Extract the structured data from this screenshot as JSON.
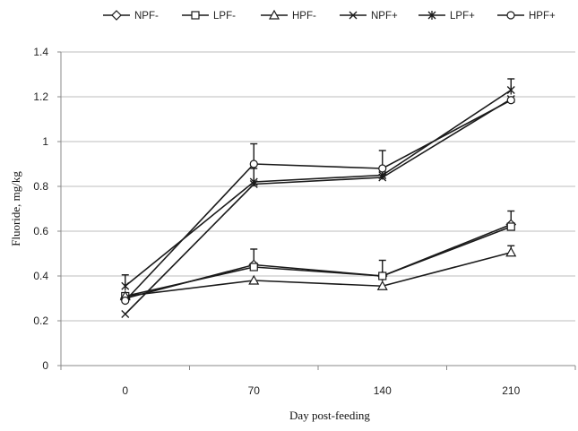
{
  "chart_data": {
    "type": "line",
    "title": "",
    "xlabel": "Day post-feeding",
    "ylabel": "Fluoride, mg/kg",
    "categories": [
      "0",
      "70",
      "140",
      "210"
    ],
    "ylim": [
      0,
      1.4
    ],
    "yticks": [
      "0",
      "0.2",
      "0.4",
      "0.6",
      "0.8",
      "1",
      "1.2",
      "1.4"
    ],
    "grid": true,
    "legend": "top",
    "line_color": "#1a1a1a",
    "grid_color": "#bdbdbd",
    "series": [
      {
        "name": "NPF-",
        "marker": "diamond",
        "values": [
          0.3,
          0.45,
          0.4,
          0.63
        ],
        "errors": [
          0.01,
          0.07,
          0.07,
          0.06
        ]
      },
      {
        "name": "LPF-",
        "marker": "square",
        "values": [
          0.31,
          0.44,
          0.4,
          0.62
        ],
        "errors": [
          0.01,
          0.01,
          0.01,
          0.01
        ]
      },
      {
        "name": "HPF-",
        "marker": "triangle",
        "values": [
          0.31,
          0.38,
          0.355,
          0.505
        ],
        "errors": [
          0.01,
          0.01,
          0.01,
          0.03
        ]
      },
      {
        "name": "NPF+",
        "marker": "x",
        "values": [
          0.23,
          0.81,
          0.84,
          1.19
        ],
        "errors": [
          0.01,
          0.01,
          0.01,
          0.01
        ]
      },
      {
        "name": "LPF+",
        "marker": "star",
        "values": [
          0.355,
          0.82,
          0.85,
          1.23
        ],
        "errors": [
          0.05,
          0.06,
          0.11,
          0.05
        ]
      },
      {
        "name": "HPF+",
        "marker": "circle",
        "values": [
          0.29,
          0.9,
          0.88,
          1.185
        ],
        "errors": [
          0.01,
          0.09,
          0.01,
          0.01
        ]
      }
    ]
  }
}
